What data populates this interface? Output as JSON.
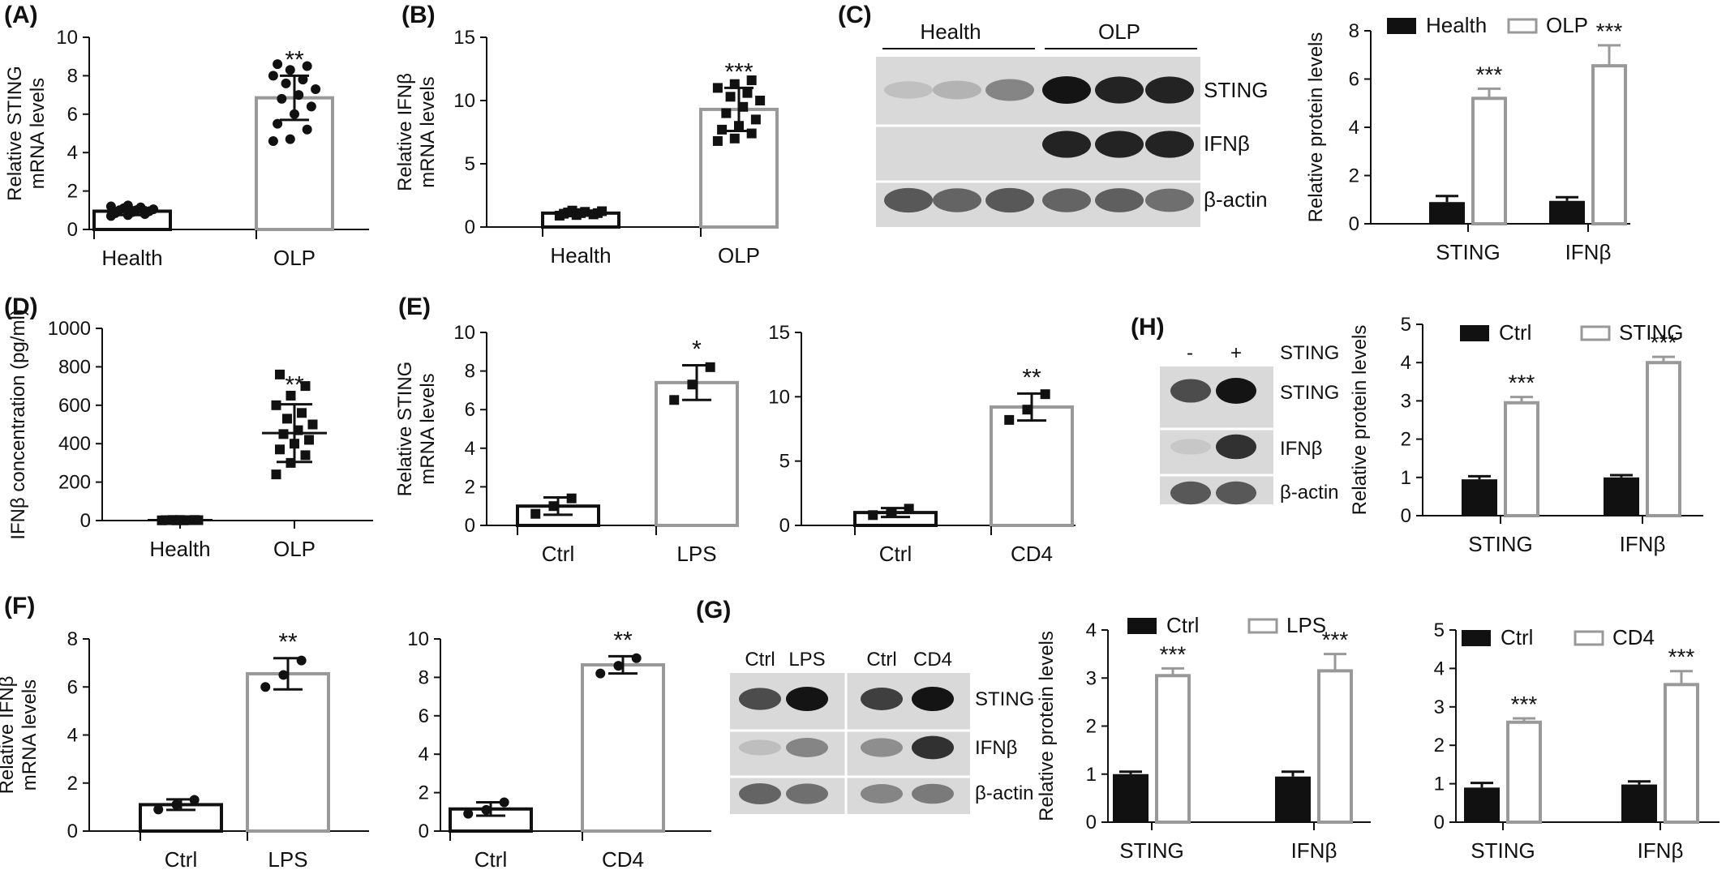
{
  "figure": {
    "panel_labels": {
      "A": "(A)",
      "B": "(B)",
      "C": "(C)",
      "D": "(D)",
      "E": "(E)",
      "F": "(F)",
      "G": "(G)",
      "H": "(H)"
    }
  },
  "blots": [
    {
      "id": "C",
      "headers": [
        {
          "text": "Health"
        },
        {
          "text": "OLP"
        }
      ],
      "rows": [
        {
          "label": "STING",
          "bands": [
            0.18,
            0.28,
            0.55,
            1.0,
            0.95,
            0.95
          ]
        },
        {
          "label": "IFNβ",
          "bands": [
            0,
            0,
            0,
            0.95,
            0.95,
            0.95
          ]
        },
        {
          "label": "β-actin",
          "bands": [
            0.75,
            0.7,
            0.75,
            0.7,
            0.72,
            0.65
          ]
        }
      ]
    },
    {
      "id": "H",
      "headers": [
        {
          "text": "-"
        },
        {
          "text": "+"
        },
        {
          "text": "STING"
        }
      ],
      "rows": [
        {
          "label": "STING",
          "bands": [
            0.8,
            1.0
          ]
        },
        {
          "label": "IFNβ",
          "bands": [
            0.12,
            0.9
          ]
        },
        {
          "label": "β-actin",
          "bands": [
            0.75,
            0.75
          ]
        }
      ]
    },
    {
      "id": "G",
      "headers": [
        {
          "text": "Ctrl"
        },
        {
          "text": "LPS"
        },
        {
          "text": "Ctrl"
        },
        {
          "text": "CD4"
        }
      ],
      "rows": [
        {
          "label": "STING",
          "bands": [
            0.8,
            1.0,
            0.85,
            1.0
          ]
        },
        {
          "label": "IFNβ",
          "bands": [
            0.2,
            0.55,
            0.5,
            0.9
          ]
        },
        {
          "label": "β-actin",
          "bands": [
            0.7,
            0.65,
            0.55,
            0.6
          ]
        }
      ]
    }
  ],
  "chart_data": [
    {
      "id": "A",
      "type": "bar",
      "ylabel": [
        "Relative STING",
        "mRNA levels"
      ],
      "categories": [
        "Health",
        "OLP"
      ],
      "values": [
        0.95,
        6.85
      ],
      "errors": [
        0.2,
        1.15
      ],
      "colors": [
        "#111111",
        "#999999"
      ],
      "significance": [
        "",
        "**"
      ],
      "ylim": [
        0,
        10
      ],
      "yticks": [
        0,
        2,
        4,
        6,
        8,
        10
      ],
      "points": [
        [
          0.7,
          0.75,
          0.8,
          0.85,
          0.9,
          0.95,
          1.0,
          1.0,
          1.05,
          1.1,
          1.15,
          1.2,
          1.25
        ],
        [
          4.6,
          4.7,
          5.2,
          5.5,
          6.0,
          6.4,
          6.8,
          7.0,
          7.3,
          7.6,
          7.8,
          8.0,
          8.3,
          8.5,
          8.6
        ]
      ]
    },
    {
      "id": "B",
      "type": "bar",
      "ylabel": [
        "Relative IFNβ",
        "mRNA levels"
      ],
      "categories": [
        "Health",
        "OLP"
      ],
      "values": [
        1.1,
        9.3
      ],
      "errors": [
        0.2,
        1.7
      ],
      "colors": [
        "#111111",
        "#999999"
      ],
      "significance": [
        "",
        "***"
      ],
      "ylim": [
        0,
        15
      ],
      "yticks": [
        0,
        5,
        10,
        15
      ],
      "points": [
        [
          0.9,
          0.95,
          1.0,
          1.05,
          1.1,
          1.1,
          1.15,
          1.2,
          1.25,
          1.3
        ],
        [
          6.8,
          7.0,
          7.4,
          7.7,
          8.0,
          8.5,
          9.0,
          9.5,
          10.0,
          10.3,
          10.6,
          11.0,
          11.3,
          11.6
        ]
      ]
    },
    {
      "id": "C-bar",
      "type": "bar",
      "ylabel": [
        "Relative protein levels"
      ],
      "categories": [
        "STING",
        "IFNβ"
      ],
      "series": [
        {
          "name": "Health",
          "values": [
            0.9,
            0.95
          ],
          "errors": [
            0.25,
            0.15
          ]
        },
        {
          "name": "OLP",
          "values": [
            5.2,
            6.55
          ],
          "errors": [
            0.4,
            0.85
          ]
        }
      ],
      "colors": [
        "#111111",
        "#999999"
      ],
      "significance": [
        [
          "",
          "***"
        ],
        [
          "",
          "***"
        ]
      ],
      "ylim": [
        0,
        8
      ],
      "yticks": [
        0,
        2,
        4,
        6,
        8
      ]
    },
    {
      "id": "D",
      "type": "scatter",
      "ylabel": [
        "IFNβ concentration (pg/ml)"
      ],
      "categories": [
        "Health",
        "OLP"
      ],
      "means": [
        2,
        455
      ],
      "errors": [
        2,
        150
      ],
      "significance": [
        "",
        "**"
      ],
      "ylim": [
        0,
        1000
      ],
      "yticks": [
        0,
        200,
        400,
        600,
        800,
        1000
      ],
      "points": [
        [
          1,
          1,
          2,
          2,
          3,
          3,
          2,
          1,
          2,
          3,
          2
        ],
        [
          240,
          300,
          340,
          370,
          400,
          420,
          450,
          470,
          500,
          530,
          560,
          600,
          650,
          700,
          760
        ]
      ]
    },
    {
      "id": "E1",
      "type": "bar",
      "ylabel": [
        "Relative STING",
        "mRNA levels"
      ],
      "categories": [
        "Ctrl",
        "LPS"
      ],
      "values": [
        1.0,
        7.4
      ],
      "errors": [
        0.45,
        0.9
      ],
      "colors": [
        "#111111",
        "#999999"
      ],
      "significance": [
        "",
        "*"
      ],
      "ylim": [
        0,
        10
      ],
      "yticks": [
        0,
        2,
        4,
        6,
        8,
        10
      ],
      "points": [
        [
          0.6,
          1.0,
          1.4
        ],
        [
          6.5,
          7.3,
          8.2
        ]
      ]
    },
    {
      "id": "E2",
      "type": "bar",
      "ylabel": [],
      "categories": [
        "Ctrl",
        "CD4"
      ],
      "values": [
        1.0,
        9.2
      ],
      "errors": [
        0.35,
        1.05
      ],
      "colors": [
        "#111111",
        "#999999"
      ],
      "significance": [
        "",
        "**"
      ],
      "ylim": [
        0,
        15
      ],
      "yticks": [
        0,
        5,
        10,
        15
      ],
      "points": [
        [
          0.8,
          1.0,
          1.3
        ],
        [
          8.2,
          9.0,
          10.2
        ]
      ]
    },
    {
      "id": "F1",
      "type": "bar",
      "ylabel": [
        "Relative IFNβ",
        "mRNA levels"
      ],
      "categories": [
        "Ctrl",
        "LPS"
      ],
      "values": [
        1.1,
        6.55
      ],
      "errors": [
        0.22,
        0.65
      ],
      "colors": [
        "#111111",
        "#999999"
      ],
      "significance": [
        "",
        "**"
      ],
      "ylim": [
        0,
        8
      ],
      "yticks": [
        0,
        2,
        4,
        6,
        8
      ],
      "points": [
        [
          0.9,
          1.1,
          1.3
        ],
        [
          6.0,
          6.5,
          7.1
        ]
      ]
    },
    {
      "id": "F2",
      "type": "bar",
      "ylabel": [],
      "categories": [
        "Ctrl",
        "CD4"
      ],
      "values": [
        1.15,
        8.65
      ],
      "errors": [
        0.35,
        0.45
      ],
      "colors": [
        "#111111",
        "#999999"
      ],
      "significance": [
        "",
        "**"
      ],
      "ylim": [
        0,
        10
      ],
      "yticks": [
        0,
        2,
        4,
        6,
        8,
        10
      ],
      "points": [
        [
          0.9,
          1.1,
          1.5
        ],
        [
          8.2,
          8.6,
          9.0
        ]
      ]
    },
    {
      "id": "G-bar1",
      "type": "bar",
      "ylabel": [
        "Relative protein levels"
      ],
      "categories": [
        "STING",
        "IFNβ"
      ],
      "series": [
        {
          "name": "Ctrl",
          "values": [
            1.0,
            0.95
          ],
          "errors": [
            0.05,
            0.1
          ]
        },
        {
          "name": "LPS",
          "values": [
            3.05,
            3.15
          ],
          "errors": [
            0.15,
            0.35
          ]
        }
      ],
      "colors": [
        "#111111",
        "#999999"
      ],
      "significance": [
        [
          "",
          "***"
        ],
        [
          "",
          "***"
        ]
      ],
      "ylim": [
        0,
        4
      ],
      "yticks": [
        0,
        1,
        2,
        3,
        4
      ]
    },
    {
      "id": "G-bar2",
      "type": "bar",
      "ylabel": [],
      "categories": [
        "STING",
        "IFNβ"
      ],
      "series": [
        {
          "name": "Ctrl",
          "values": [
            0.9,
            0.98
          ],
          "errors": [
            0.12,
            0.08
          ]
        },
        {
          "name": "CD4",
          "values": [
            2.6,
            3.58
          ],
          "errors": [
            0.1,
            0.35
          ]
        }
      ],
      "colors": [
        "#111111",
        "#999999"
      ],
      "significance": [
        [
          "",
          "***"
        ],
        [
          "",
          "***"
        ]
      ],
      "ylim": [
        0,
        5
      ],
      "yticks": [
        0,
        1,
        2,
        3,
        4,
        5
      ]
    },
    {
      "id": "H-bar",
      "type": "bar",
      "ylabel": [
        "Relative protein levels"
      ],
      "categories": [
        "STING",
        "IFNβ"
      ],
      "series": [
        {
          "name": "Ctrl",
          "values": [
            0.95,
            1.0
          ],
          "errors": [
            0.08,
            0.06
          ]
        },
        {
          "name": "STING",
          "values": [
            2.95,
            4.0
          ],
          "errors": [
            0.15,
            0.15
          ]
        }
      ],
      "colors": [
        "#111111",
        "#999999"
      ],
      "significance": [
        [
          "",
          "***"
        ],
        [
          "",
          "***"
        ]
      ],
      "ylim": [
        0,
        5
      ],
      "yticks": [
        0,
        1,
        2,
        3,
        4,
        5
      ]
    }
  ]
}
